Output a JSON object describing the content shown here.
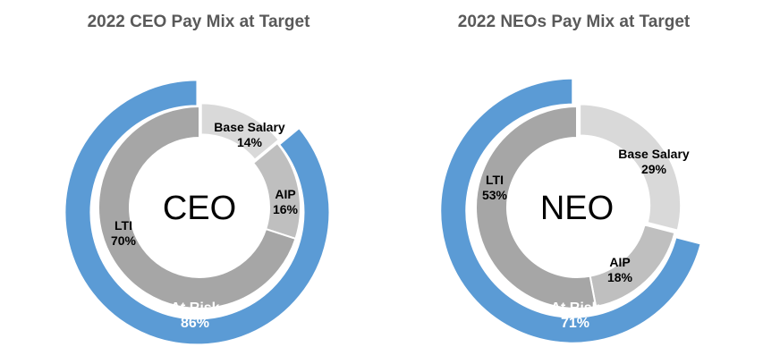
{
  "chart_data": [
    {
      "type": "pie",
      "subtype": "nested-donut",
      "title": "2022 CEO Pay Mix at Target",
      "center_label": "CEO",
      "inner_ring": [
        {
          "label": "Base Salary",
          "value": 14,
          "value_label": "14%",
          "color": "#d9d9d9"
        },
        {
          "label": "AIP",
          "value": 16,
          "value_label": "16%",
          "color": "#bfbfbf"
        },
        {
          "label": "LTI",
          "value": 70,
          "value_label": "70%",
          "color": "#a6a6a6"
        }
      ],
      "outer_ring": [
        {
          "label": "At Risk",
          "value": 86,
          "value_label": "86%",
          "color": "#5b9bd5"
        }
      ]
    },
    {
      "type": "pie",
      "subtype": "nested-donut",
      "title": "2022 NEOs Pay Mix at Target",
      "center_label": "NEO",
      "inner_ring": [
        {
          "label": "Base Salary",
          "value": 29,
          "value_label": "29%",
          "color": "#d9d9d9"
        },
        {
          "label": "AIP",
          "value": 18,
          "value_label": "18%",
          "color": "#bfbfbf"
        },
        {
          "label": "LTI",
          "value": 53,
          "value_label": "53%",
          "color": "#a6a6a6"
        }
      ],
      "outer_ring": [
        {
          "label": "At Risk",
          "value": 71,
          "value_label": "71%",
          "color": "#5b9bd5"
        }
      ]
    }
  ]
}
